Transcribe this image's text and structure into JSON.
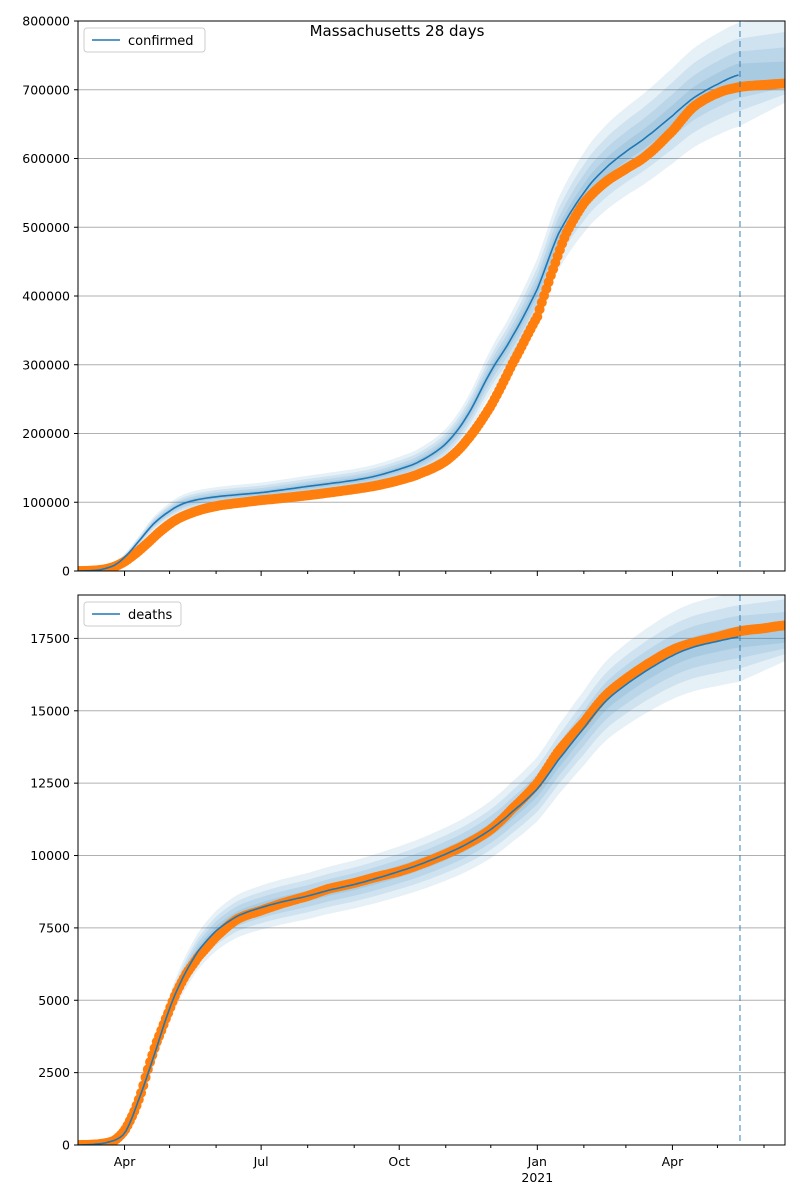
{
  "title": "Massachusetts 28 days",
  "colors": {
    "model": "#1f77b4",
    "observed": "#ff7f0e",
    "grid": "#b0b0b0",
    "band": "#1f77b4",
    "cutoff": "#1f77b4"
  },
  "x_axis": {
    "start": "2020-03-01",
    "end": "2021-06-15",
    "cutoff": "2021-05-16",
    "ticks": [
      {
        "date": "2020-04-01",
        "label": "Apr"
      },
      {
        "date": "2020-07-01",
        "label": "Jul"
      },
      {
        "date": "2020-10-01",
        "label": "Oct"
      },
      {
        "date": "2021-01-01",
        "label": "Jan"
      },
      {
        "date": "2021-04-01",
        "label": "Apr"
      }
    ],
    "year_label": "2021",
    "minor_months": [
      "2020-05-01",
      "2020-06-01",
      "2020-08-01",
      "2020-09-01",
      "2020-11-01",
      "2020-12-01",
      "2021-02-01",
      "2021-03-01",
      "2021-05-01",
      "2021-06-01"
    ]
  },
  "chart_data": [
    {
      "type": "line",
      "name": "confirmed",
      "legend": "confirmed",
      "ylim": [
        0,
        800000
      ],
      "yticks": [
        0,
        100000,
        200000,
        300000,
        400000,
        500000,
        600000,
        700000,
        800000
      ],
      "ytick_labels": [
        "0",
        "100000",
        "200000",
        "300000",
        "400000",
        "500000",
        "600000",
        "700000",
        "800000"
      ],
      "grid": true,
      "legend_position": "top-left",
      "model": {
        "dates": [
          "2020-03-01",
          "2020-03-15",
          "2020-03-25",
          "2020-04-01",
          "2020-04-10",
          "2020-04-20",
          "2020-05-01",
          "2020-05-10",
          "2020-05-20",
          "2020-06-01",
          "2020-06-15",
          "2020-07-01",
          "2020-07-15",
          "2020-08-01",
          "2020-08-15",
          "2020-09-01",
          "2020-09-15",
          "2020-10-01",
          "2020-10-15",
          "2020-11-01",
          "2020-11-15",
          "2020-12-01",
          "2020-12-15",
          "2021-01-01",
          "2021-01-15",
          "2021-02-01",
          "2021-02-15",
          "2021-03-01",
          "2021-03-15",
          "2021-04-01",
          "2021-04-15",
          "2021-05-01",
          "2021-05-16"
        ],
        "values": [
          0,
          1500,
          8000,
          20000,
          42000,
          68000,
          87000,
          98000,
          104000,
          108000,
          111000,
          114000,
          118000,
          123000,
          127000,
          132000,
          138000,
          148000,
          160000,
          185000,
          225000,
          290000,
          340000,
          410000,
          490000,
          550000,
          585000,
          610000,
          632000,
          662000,
          688000,
          708000,
          722000
        ],
        "bands": [
          {
            "opacity": 0.11,
            "spread": 0.1
          },
          {
            "opacity": 0.11,
            "spread": 0.07
          },
          {
            "opacity": 0.11,
            "spread": 0.045
          },
          {
            "opacity": 0.11,
            "spread": 0.022
          }
        ]
      },
      "observed": {
        "dates": [
          "2020-03-01",
          "2020-03-10",
          "2020-03-20",
          "2020-03-28",
          "2020-04-05",
          "2020-04-15",
          "2020-04-25",
          "2020-05-05",
          "2020-05-15",
          "2020-05-25",
          "2020-06-05",
          "2020-06-20",
          "2020-07-01",
          "2020-07-15",
          "2020-08-01",
          "2020-08-15",
          "2020-09-01",
          "2020-09-15",
          "2020-10-01",
          "2020-10-15",
          "2020-11-01",
          "2020-11-15",
          "2020-12-01",
          "2020-12-15",
          "2021-01-01",
          "2021-01-10",
          "2021-01-20",
          "2021-02-01",
          "2021-02-15",
          "2021-03-01",
          "2021-03-15",
          "2021-04-01",
          "2021-04-15",
          "2021-05-01",
          "2021-05-16",
          "2021-06-01",
          "2021-06-15"
        ],
        "values": [
          0,
          500,
          3000,
          9000,
          20000,
          38000,
          58000,
          74000,
          84000,
          91000,
          96000,
          100000,
          103000,
          106000,
          110000,
          114000,
          119000,
          124000,
          132000,
          142000,
          160000,
          190000,
          240000,
          300000,
          370000,
          430000,
          490000,
          535000,
          565000,
          585000,
          605000,
          640000,
          675000,
          695000,
          704000,
          707000,
          709000
        ]
      }
    },
    {
      "type": "line",
      "name": "deaths",
      "legend": "deaths",
      "ylim": [
        0,
        19000
      ],
      "yticks": [
        0,
        2500,
        5000,
        7500,
        10000,
        12500,
        15000,
        17500
      ],
      "ytick_labels": [
        "0",
        "2500",
        "5000",
        "7500",
        "10000",
        "12500",
        "15000",
        "17500"
      ],
      "grid": true,
      "legend_position": "top-left",
      "model": {
        "dates": [
          "2020-03-01",
          "2020-03-20",
          "2020-04-01",
          "2020-04-10",
          "2020-04-20",
          "2020-05-01",
          "2020-05-10",
          "2020-05-20",
          "2020-06-01",
          "2020-06-15",
          "2020-07-01",
          "2020-07-15",
          "2020-08-01",
          "2020-08-15",
          "2020-09-01",
          "2020-09-15",
          "2020-10-01",
          "2020-10-15",
          "2020-11-01",
          "2020-11-15",
          "2020-12-01",
          "2020-12-15",
          "2021-01-01",
          "2021-01-15",
          "2021-02-01",
          "2021-02-15",
          "2021-03-01",
          "2021-03-15",
          "2021-04-01",
          "2021-04-15",
          "2021-05-01",
          "2021-05-16"
        ],
        "values": [
          0,
          80,
          400,
          1500,
          3000,
          4700,
          5800,
          6700,
          7400,
          7900,
          8200,
          8400,
          8600,
          8800,
          9000,
          9200,
          9450,
          9700,
          10050,
          10400,
          10900,
          11500,
          12300,
          13300,
          14400,
          15300,
          15900,
          16400,
          16900,
          17200,
          17400,
          17550
        ],
        "bands": [
          {
            "opacity": 0.11,
            "spread": 0.085
          },
          {
            "opacity": 0.11,
            "spread": 0.06
          },
          {
            "opacity": 0.11,
            "spread": 0.04
          },
          {
            "opacity": 0.11,
            "spread": 0.02
          }
        ]
      },
      "observed": {
        "dates": [
          "2020-03-01",
          "2020-03-15",
          "2020-03-25",
          "2020-04-01",
          "2020-04-07",
          "2020-04-12",
          "2020-04-17",
          "2020-04-22",
          "2020-04-28",
          "2020-05-05",
          "2020-05-12",
          "2020-05-20",
          "2020-06-01",
          "2020-06-15",
          "2020-07-01",
          "2020-07-15",
          "2020-08-01",
          "2020-08-15",
          "2020-09-01",
          "2020-09-15",
          "2020-10-01",
          "2020-10-15",
          "2020-11-01",
          "2020-11-15",
          "2020-12-01",
          "2020-12-15",
          "2021-01-01",
          "2021-01-15",
          "2021-02-01",
          "2021-02-15",
          "2021-03-01",
          "2021-03-15",
          "2021-04-01",
          "2021-04-15",
          "2021-05-01",
          "2021-05-16",
          "2021-06-01",
          "2021-06-15"
        ],
        "values": [
          0,
          30,
          150,
          500,
          1100,
          1800,
          2700,
          3500,
          4300,
          5200,
          5900,
          6500,
          7200,
          7800,
          8100,
          8350,
          8600,
          8850,
          9050,
          9250,
          9450,
          9700,
          10050,
          10400,
          10900,
          11600,
          12500,
          13600,
          14600,
          15500,
          16100,
          16600,
          17100,
          17350,
          17550,
          17750,
          17850,
          17950
        ]
      }
    }
  ]
}
